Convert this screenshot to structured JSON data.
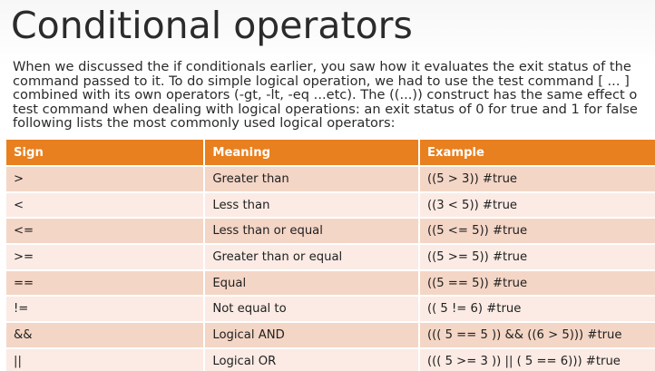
{
  "slide": {
    "title": "Conditional operators",
    "paragraph_lines": [
      "When we discussed the if conditionals earlier, you saw how it evaluates the exit status of the",
      "command passed to it. To do simple logical operation, we had to use the test command [ ... ]",
      "combined with its own operators (-gt, -lt, -eq ...etc). The ((...)) construct has the same effect o",
      "test command when dealing with logical operations: an exit status of 0 for true and 1 for false",
      "following lists the most commonly used logical operators:"
    ]
  },
  "table": {
    "headers": [
      "Sign",
      "Meaning",
      "Example"
    ],
    "rows": [
      {
        "sign": ">",
        "meaning": "Greater than",
        "example": "((5 > 3)) #true"
      },
      {
        "sign": "<",
        "meaning": "Less than",
        "example": "((3 < 5)) #true"
      },
      {
        "sign": "<=",
        "meaning": "Less than or equal",
        "example": "((5 <= 5)) #true"
      },
      {
        "sign": ">=",
        "meaning": "Greater than or equal",
        "example": "((5 >= 5)) #true"
      },
      {
        "sign": "==",
        "meaning": "Equal",
        "example": "((5 == 5)) #true"
      },
      {
        "sign": "!=",
        "meaning": "Not equal to",
        "example": "(( 5 != 6) #true"
      },
      {
        "sign": "&&",
        "meaning": "Logical AND",
        "example": "((( 5 == 5 )) && ((6 > 5))) #true"
      },
      {
        "sign": "||",
        "meaning": "Logical OR",
        "example": "((( 5 >= 3 )) || ( 5 == 6))) #true"
      }
    ]
  },
  "colors": {
    "header_bg": "#e8801f",
    "row_odd_bg": "#f4d6c6",
    "row_even_bg": "#fbebe4"
  }
}
